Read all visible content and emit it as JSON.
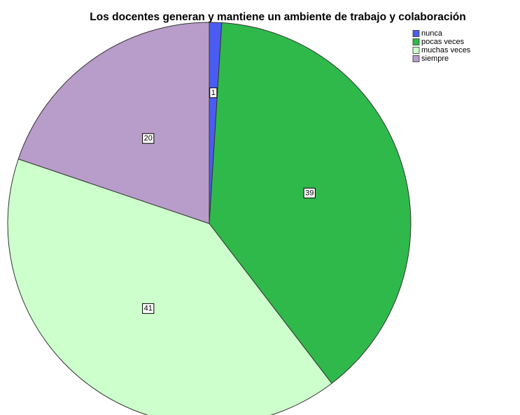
{
  "chart_data": {
    "type": "pie",
    "title": "Los docentes generan y mantiene un ambiente de trabajo  y colaboración",
    "categories": [
      "nunca",
      "pocas veces",
      "muchas veces",
      "siempre"
    ],
    "values": [
      1,
      39,
      41,
      20
    ],
    "colors": [
      "#4a5cf2",
      "#2fb94b",
      "#ccffcc",
      "#b89cc9"
    ],
    "legend": "top-right"
  }
}
